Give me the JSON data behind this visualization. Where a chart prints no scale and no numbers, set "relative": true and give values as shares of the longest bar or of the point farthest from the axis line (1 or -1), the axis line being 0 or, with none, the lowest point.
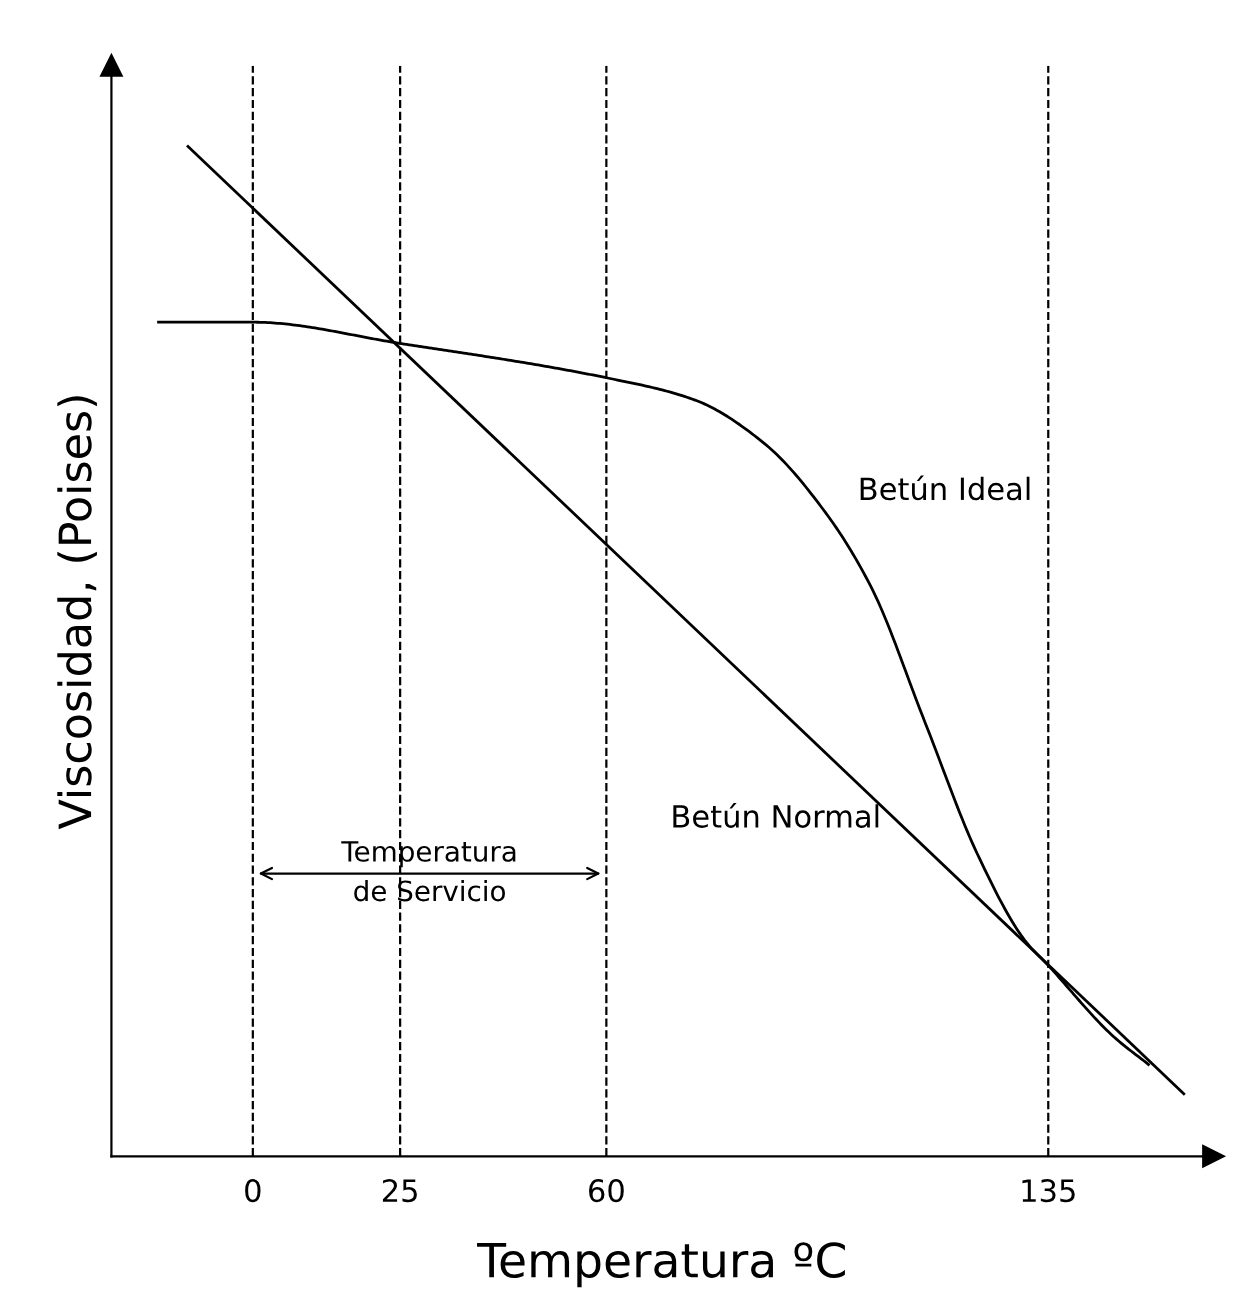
{
  "chart_data": {
    "type": "line",
    "relative": true,
    "xlabel": "Temperatura ºC",
    "ylabel": "Viscosidad, (Poises)",
    "xlim": [
      -24,
      163
    ],
    "xticks": [
      0,
      25,
      60,
      135
    ],
    "grid": false,
    "legend": false,
    "line_style": "solid",
    "marker": "none",
    "series": [
      {
        "name": "Betún Ideal",
        "color": "#000000",
        "x": [
          -16,
          0,
          25,
          60,
          75,
          87,
          97,
          105,
          114,
          123,
          131,
          135,
          146,
          152
        ],
        "values": [
          0.826,
          0.826,
          0.805,
          0.771,
          0.749,
          0.705,
          0.639,
          0.563,
          0.431,
          0.299,
          0.214,
          0.189,
          0.119,
          0.091
        ]
      },
      {
        "name": "Betún Normal",
        "color": "#000000",
        "x": [
          -11,
          158
        ],
        "values": [
          1.0,
          0.062
        ]
      }
    ],
    "ref_lines": [
      {
        "axis": "x",
        "value": 0,
        "line_style": "dashed"
      },
      {
        "axis": "x",
        "value": 25,
        "line_style": "dashed"
      },
      {
        "axis": "x",
        "value": 60,
        "line_style": "dashed"
      },
      {
        "axis": "x",
        "value": 135,
        "line_style": "dashed"
      }
    ],
    "annotations": [
      "Temperatura\nde Servicio"
    ]
  }
}
